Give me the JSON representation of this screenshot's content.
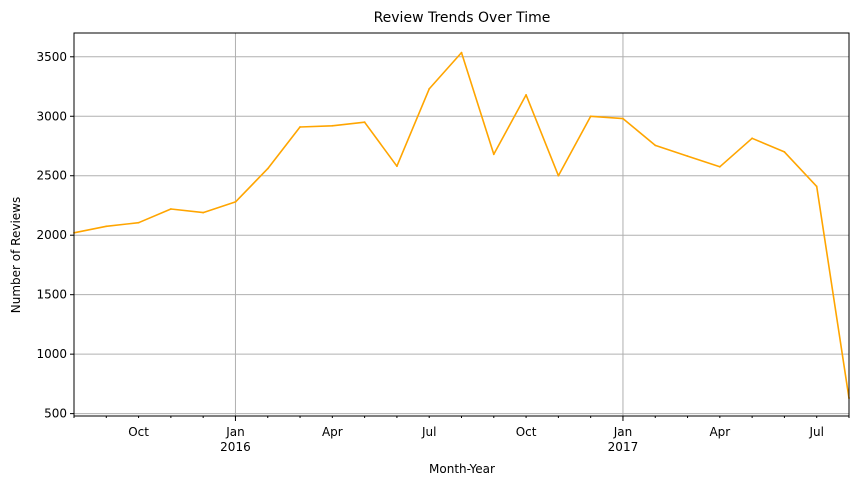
{
  "chart_data": {
    "type": "line",
    "title": "Review Trends Over Time",
    "xlabel": "Month-Year",
    "ylabel": "Number of Reviews",
    "xlim": [
      "2015-08",
      "2017-08"
    ],
    "ylim": [
      480,
      3700
    ],
    "grid": true,
    "color": "#ffa500",
    "x": [
      "2015-08",
      "2015-09",
      "2015-10",
      "2015-11",
      "2015-12",
      "2016-01",
      "2016-02",
      "2016-03",
      "2016-04",
      "2016-05",
      "2016-06",
      "2016-07",
      "2016-08",
      "2016-09",
      "2016-10",
      "2016-11",
      "2016-12",
      "2017-01",
      "2017-02",
      "2017-03",
      "2017-04",
      "2017-05",
      "2017-06",
      "2017-07",
      "2017-08"
    ],
    "y": [
      2020,
      2075,
      2105,
      2220,
      2190,
      2280,
      2560,
      2910,
      2920,
      2950,
      2580,
      3230,
      3535,
      2680,
      3180,
      2500,
      3000,
      2980,
      2755,
      2665,
      2575,
      2815,
      2700,
      2410,
      630
    ],
    "y_ticks": [
      {
        "value": 500,
        "label": "500"
      },
      {
        "value": 1000,
        "label": "1000"
      },
      {
        "value": 1500,
        "label": "1500"
      },
      {
        "value": 2000,
        "label": "2000"
      },
      {
        "value": 2500,
        "label": "2500"
      },
      {
        "value": 3000,
        "label": "3000"
      },
      {
        "value": 3500,
        "label": "3500"
      }
    ],
    "x_major_ticks": [
      {
        "month": "2016-01",
        "label": "Jan",
        "year": "2016"
      },
      {
        "month": "2017-01",
        "label": "Jan",
        "year": "2017"
      }
    ],
    "x_minor_labels": [
      {
        "month": "2015-10",
        "label": "Oct"
      },
      {
        "month": "2016-04",
        "label": "Apr"
      },
      {
        "month": "2016-07",
        "label": "Jul"
      },
      {
        "month": "2016-10",
        "label": "Oct"
      },
      {
        "month": "2017-04",
        "label": "Apr"
      },
      {
        "month": "2017-07",
        "label": "Jul"
      }
    ]
  }
}
